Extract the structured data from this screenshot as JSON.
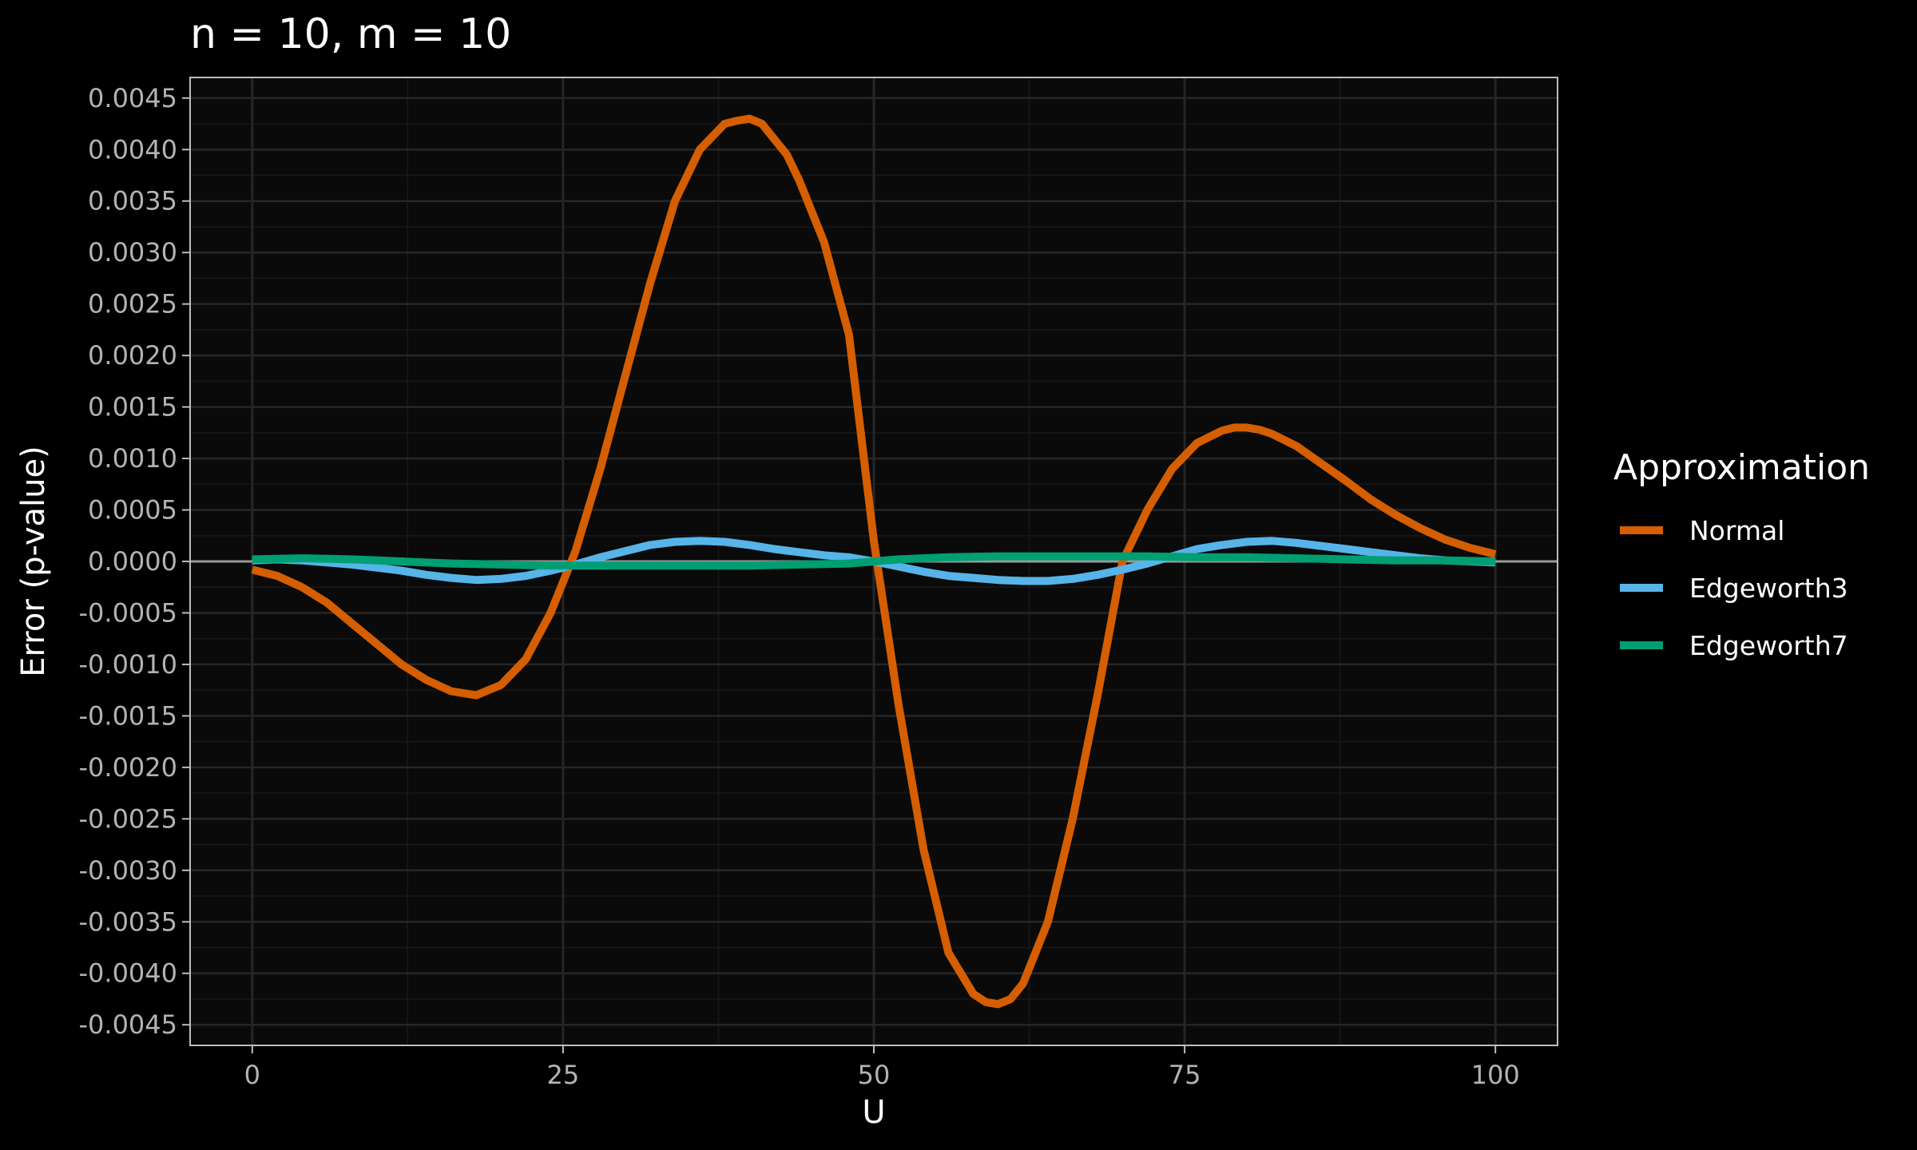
{
  "chart_data": {
    "type": "line",
    "title": "n = 10, m = 10",
    "xlabel": "U",
    "ylabel": "Error (p-value)",
    "xlim": [
      -5,
      105
    ],
    "ylim": [
      -0.0047,
      0.0047
    ],
    "x_ticks": [
      0,
      25,
      50,
      75,
      100
    ],
    "x_tick_labels": [
      "0",
      "25",
      "50",
      "75",
      "100"
    ],
    "y_ticks": [
      0.0045,
      0.004,
      0.0035,
      0.003,
      0.0025,
      0.002,
      0.0015,
      0.001,
      0.0005,
      0,
      -0.0005,
      -0.001,
      -0.0015,
      -0.002,
      -0.0025,
      -0.003,
      -0.0035,
      -0.004,
      -0.0045
    ],
    "y_tick_labels": [
      "0.0045",
      "0.0040",
      "0.0035",
      "0.0030",
      "0.0025",
      "0.0020",
      "0.0015",
      "0.0010",
      "0.0005",
      "0.0000",
      "-0.0005",
      "-0.0010",
      "-0.0015",
      "-0.0020",
      "-0.0025",
      "-0.0030",
      "-0.0035",
      "-0.0040",
      "-0.0045"
    ],
    "grid": true,
    "background": "#000000",
    "panel_background": "#0a0a0a",
    "legend": {
      "title": "Approximation",
      "position": "right"
    },
    "series": [
      {
        "name": "Normal",
        "color": "#d55e00",
        "x": [
          0,
          2,
          4,
          6,
          8,
          10,
          12,
          14,
          16,
          18,
          20,
          22,
          24,
          26,
          28,
          30,
          32,
          34,
          36,
          38,
          39,
          40,
          41,
          42,
          43,
          44,
          46,
          48,
          50,
          52,
          54,
          56,
          58,
          59,
          60,
          61,
          62,
          64,
          66,
          68,
          70,
          72,
          74,
          76,
          78,
          79,
          80,
          81,
          82,
          84,
          86,
          88,
          90,
          92,
          94,
          96,
          98,
          100
        ],
        "y": [
          -8e-05,
          -0.00014,
          -0.00025,
          -0.0004,
          -0.0006,
          -0.0008,
          -0.001,
          -0.00115,
          -0.00126,
          -0.0013,
          -0.0012,
          -0.00095,
          -0.0005,
          0.0001,
          0.0009,
          0.0018,
          0.0027,
          0.0035,
          0.004,
          0.00425,
          0.00428,
          0.0043,
          0.00425,
          0.0041,
          0.00395,
          0.0037,
          0.0031,
          0.0022,
          0.0002,
          -0.0014,
          -0.0028,
          -0.0038,
          -0.0042,
          -0.00428,
          -0.0043,
          -0.00425,
          -0.0041,
          -0.0035,
          -0.0025,
          -0.0013,
          0.0,
          0.0005,
          0.0009,
          0.00115,
          0.00127,
          0.0013,
          0.0013,
          0.00128,
          0.00124,
          0.00112,
          0.00095,
          0.00078,
          0.0006,
          0.00045,
          0.00032,
          0.00021,
          0.00013,
          7e-05
        ]
      },
      {
        "name": "Edgeworth3",
        "color": "#56b4e9",
        "x": [
          0,
          2,
          4,
          6,
          8,
          10,
          12,
          14,
          16,
          18,
          20,
          22,
          24,
          26,
          28,
          30,
          32,
          34,
          36,
          38,
          40,
          42,
          44,
          46,
          48,
          50,
          52,
          54,
          56,
          58,
          60,
          62,
          64,
          66,
          68,
          70,
          72,
          74,
          76,
          78,
          80,
          82,
          84,
          86,
          88,
          90,
          92,
          94,
          96,
          98,
          100
        ],
        "y": [
          1e-05,
          2e-05,
          1e-05,
          -1e-05,
          -3e-05,
          -6e-05,
          -9e-05,
          -0.00013,
          -0.00016,
          -0.00018,
          -0.00017,
          -0.00014,
          -9e-05,
          -3e-05,
          4e-05,
          0.0001,
          0.00016,
          0.00019,
          0.0002,
          0.00019,
          0.00016,
          0.00012,
          9e-05,
          6e-05,
          4e-05,
          0.0,
          -5e-05,
          -0.0001,
          -0.00014,
          -0.00016,
          -0.00018,
          -0.00019,
          -0.00019,
          -0.00017,
          -0.00013,
          -8e-05,
          -2e-05,
          5e-05,
          0.00012,
          0.00016,
          0.00019,
          0.0002,
          0.00018,
          0.00015,
          0.00012,
          9e-05,
          6e-05,
          3e-05,
          1e-05,
          0.0,
          -1e-05
        ]
      },
      {
        "name": "Edgeworth7",
        "color": "#009e73",
        "x": [
          0,
          4,
          8,
          12,
          16,
          20,
          24,
          28,
          32,
          36,
          40,
          44,
          48,
          50,
          52,
          56,
          60,
          64,
          68,
          72,
          76,
          80,
          84,
          88,
          92,
          96,
          100
        ],
        "y": [
          2e-05,
          3e-05,
          2e-05,
          0.0,
          -2e-05,
          -3e-05,
          -4e-05,
          -4e-05,
          -4e-05,
          -4e-05,
          -4e-05,
          -3e-05,
          -2e-05,
          0.0,
          2e-05,
          4e-05,
          5e-05,
          5e-05,
          5e-05,
          5e-05,
          4e-05,
          4e-05,
          3e-05,
          2e-05,
          1e-05,
          1e-05,
          0.0
        ]
      }
    ]
  }
}
